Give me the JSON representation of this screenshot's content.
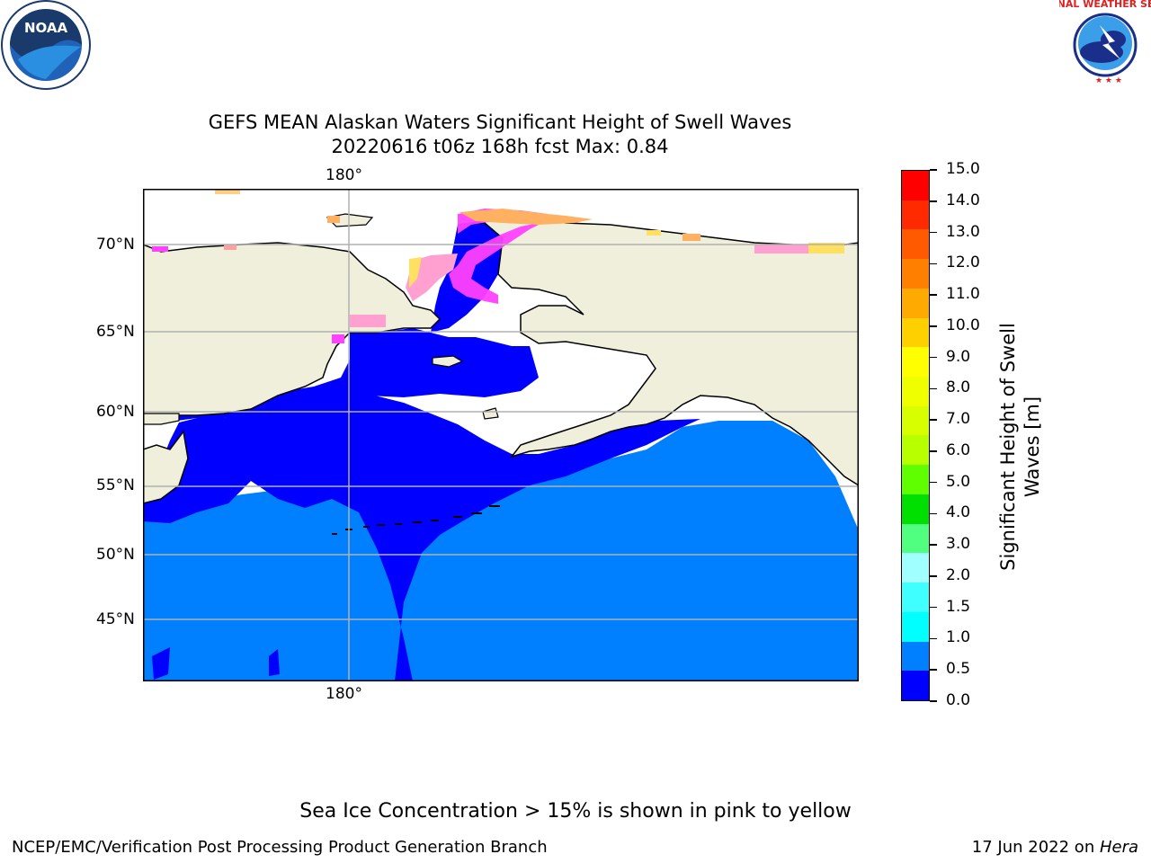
{
  "title": {
    "line1": "GEFS MEAN Alaskan Waters Significant Height of Swell Waves",
    "line2": "20220616 t06z 168h fcst   Max: 0.84"
  },
  "map": {
    "lon_label_top": "180°",
    "lon_label_bottom": "180°",
    "lat_labels": [
      "70°N",
      "65°N",
      "60°N",
      "55°N",
      "50°N",
      "45°N"
    ],
    "ocean_low_color": "#0000ff",
    "ocean_mid_color": "#0080ff",
    "land_color": "#efefdc",
    "ice_colors": [
      "#ff40ff",
      "#ffa0d0",
      "#ffb060",
      "#ffe060"
    ]
  },
  "colorbar": {
    "label_line1": "Significant Height of Swell",
    "label_line2": "Waves [m]",
    "ticks": [
      "15.0",
      "14.0",
      "13.0",
      "12.0",
      "11.0",
      "10.0",
      "9.0",
      "8.0",
      "7.0",
      "6.0",
      "5.0",
      "4.0",
      "3.0",
      "2.0",
      "1.5",
      "1.0",
      "0.5",
      "0.0"
    ],
    "colors_top_to_bottom": [
      "#ff0000",
      "#ff2a00",
      "#ff5a00",
      "#ff8000",
      "#ffaa00",
      "#ffd000",
      "#ffff00",
      "#f0ff00",
      "#d8ff00",
      "#b8ff00",
      "#60ff00",
      "#00e000",
      "#50ff80",
      "#a0ffff",
      "#40ffff",
      "#00ffff",
      "#0080ff",
      "#0000ff"
    ]
  },
  "ice_note": "Sea Ice Concentration > 15% is shown in pink to yellow",
  "footer": {
    "left": "NCEP/EMC/Verification Post Processing Product Generation Branch",
    "right_date": "17 Jun 2022 on ",
    "right_host": "Hera"
  },
  "logos": {
    "noaa_text": "NOAA",
    "nws_text": "NATIONAL WEATHER SERVICE"
  }
}
